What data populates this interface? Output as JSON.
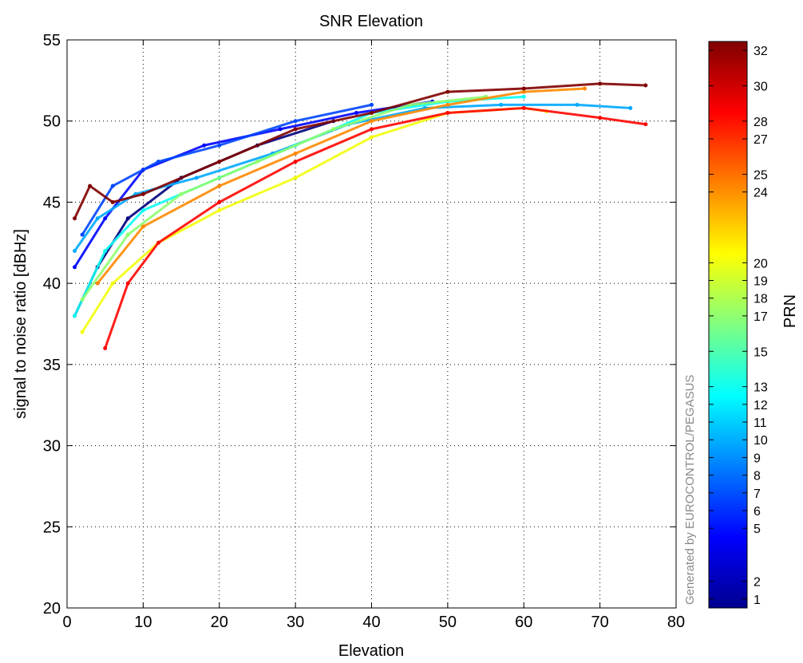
{
  "chart_data": {
    "type": "scatter",
    "title": "SNR Elevation",
    "xlabel": "Elevation",
    "ylabel": "signal to noise ratio  [dBHz]",
    "xlim": [
      0,
      80
    ],
    "ylim": [
      20,
      55
    ],
    "x_ticks": [
      0,
      10,
      20,
      30,
      40,
      50,
      60,
      70,
      80
    ],
    "y_ticks": [
      20,
      25,
      30,
      35,
      40,
      45,
      50,
      55
    ],
    "grid": true,
    "watermark": "Generated by EUROCONTROL/PEGASUS",
    "colorbar": {
      "label": "PRN",
      "colormap": "jet",
      "range": [
        1,
        32
      ],
      "tick_labels": [
        "1",
        "2",
        "5",
        "6",
        "7",
        "8",
        "9",
        "10",
        "11",
        "12",
        "13",
        "15",
        "17",
        "18",
        "19",
        "20",
        "24",
        "25",
        "27",
        "28",
        "30",
        "32"
      ]
    },
    "series": [
      {
        "prn": 1,
        "x": [
          1,
          4,
          8,
          15,
          25,
          35
        ],
        "y": [
          38,
          41,
          44,
          46.5,
          48.5,
          50
        ]
      },
      {
        "prn": 5,
        "x": [
          1,
          5,
          10,
          18,
          28,
          38,
          48
        ],
        "y": [
          41,
          44,
          47,
          48.5,
          49.5,
          50.5,
          51.2
        ]
      },
      {
        "prn": 7,
        "x": [
          2,
          6,
          12,
          20,
          30,
          40
        ],
        "y": [
          43,
          46,
          47.5,
          48.5,
          50,
          51
        ]
      },
      {
        "prn": 10,
        "x": [
          1,
          4,
          9,
          17,
          27,
          37,
          47,
          57,
          67,
          74
        ],
        "y": [
          42,
          44,
          45.5,
          46.5,
          48,
          49.8,
          50.8,
          51,
          51,
          50.8
        ]
      },
      {
        "prn": 13,
        "x": [
          1,
          5,
          10,
          20,
          30,
          40,
          50,
          60
        ],
        "y": [
          38,
          42,
          44.5,
          46.5,
          48.5,
          50.5,
          51.2,
          51.5
        ]
      },
      {
        "prn": 17,
        "x": [
          2,
          8,
          15,
          25,
          35,
          45,
          55
        ],
        "y": [
          39,
          43,
          45.5,
          47.5,
          49.5,
          51,
          51.5
        ]
      },
      {
        "prn": 20,
        "x": [
          2,
          6,
          12,
          20,
          30,
          40,
          50,
          60,
          63
        ],
        "y": [
          37,
          40,
          42.5,
          44.5,
          46.5,
          49,
          50.5,
          50.8,
          50.6
        ]
      },
      {
        "prn": 24,
        "x": [
          4,
          10,
          20,
          30,
          40,
          50,
          60,
          68
        ],
        "y": [
          40,
          43.5,
          46,
          48,
          50,
          51,
          51.8,
          52
        ]
      },
      {
        "prn": 28,
        "x": [
          5,
          8,
          12,
          20,
          30,
          40,
          50,
          60,
          70,
          76
        ],
        "y": [
          36,
          40,
          42.5,
          45,
          47.5,
          49.5,
          50.5,
          50.8,
          50.2,
          49.8
        ]
      },
      {
        "prn": 32,
        "x": [
          1,
          3,
          6,
          10,
          20,
          30,
          40,
          50,
          60,
          70,
          76
        ],
        "y": [
          44,
          46,
          45,
          45.5,
          47.5,
          49.5,
          50.5,
          51.8,
          52,
          52.3,
          52.2
        ]
      }
    ]
  }
}
